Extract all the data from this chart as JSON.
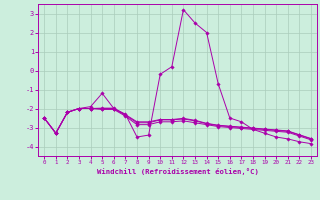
{
  "xlabel": "Windchill (Refroidissement éolien,°C)",
  "xlim": [
    -0.5,
    23.5
  ],
  "ylim": [
    -4.5,
    3.5
  ],
  "yticks": [
    3,
    2,
    1,
    0,
    -1,
    -2,
    -3,
    -4
  ],
  "xticks": [
    0,
    1,
    2,
    3,
    4,
    5,
    6,
    7,
    8,
    9,
    10,
    11,
    12,
    13,
    14,
    15,
    16,
    17,
    18,
    19,
    20,
    21,
    22,
    23
  ],
  "bg_color": "#cceedd",
  "grid_color": "#aaccbb",
  "line_color": "#aa00aa",
  "main_line": [
    -2.5,
    -3.3,
    -2.2,
    -2.0,
    -1.9,
    -1.2,
    -2.0,
    -2.3,
    -3.5,
    -3.4,
    -0.2,
    0.2,
    3.2,
    2.5,
    2.0,
    -0.7,
    -2.5,
    -2.7,
    -3.1,
    -3.3,
    -3.5,
    -3.6,
    -3.75,
    -3.85
  ],
  "line2": [
    -2.5,
    -3.3,
    -2.2,
    -2.0,
    -2.0,
    -2.05,
    -2.05,
    -2.4,
    -2.85,
    -2.85,
    -2.7,
    -2.7,
    -2.65,
    -2.75,
    -2.85,
    -2.95,
    -3.0,
    -3.05,
    -3.1,
    -3.15,
    -3.2,
    -3.25,
    -3.45,
    -3.65
  ],
  "line3": [
    -2.5,
    -3.3,
    -2.2,
    -2.0,
    -2.0,
    -2.0,
    -2.0,
    -2.35,
    -2.75,
    -2.75,
    -2.6,
    -2.6,
    -2.55,
    -2.65,
    -2.8,
    -2.9,
    -2.95,
    -3.0,
    -3.05,
    -3.1,
    -3.15,
    -3.2,
    -3.4,
    -3.6
  ],
  "line4": [
    -2.5,
    -3.3,
    -2.2,
    -2.0,
    -2.0,
    -1.98,
    -1.98,
    -2.32,
    -2.7,
    -2.7,
    -2.58,
    -2.58,
    -2.52,
    -2.62,
    -2.78,
    -2.88,
    -2.93,
    -2.98,
    -3.03,
    -3.08,
    -3.13,
    -3.18,
    -3.38,
    -3.58
  ]
}
